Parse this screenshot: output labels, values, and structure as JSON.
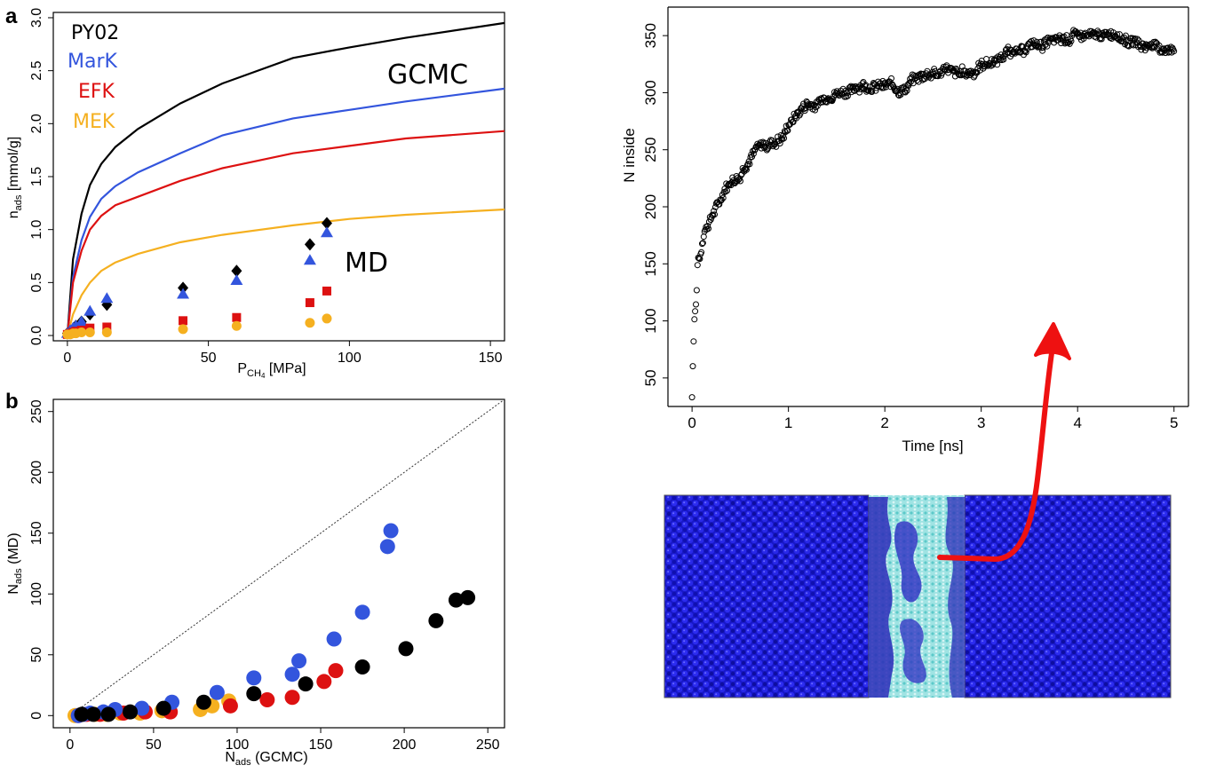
{
  "panels": {
    "a": {
      "label": "a",
      "legend": [
        {
          "name": "PY02",
          "color": "#000000"
        },
        {
          "name": "MarK",
          "color": "#3355dd"
        },
        {
          "name": "EFK",
          "color": "#dd1111"
        },
        {
          "name": "MEK",
          "color": "#f5b020"
        }
      ],
      "annotation_gcmc": "GCMC",
      "annotation_md": "MD",
      "ylabel_main": "n",
      "ylabel_sub": "ads",
      "ylabel_unit": " [mmol/g]",
      "xlabel_main": "P",
      "xlabel_sub": "CH",
      "xlabel_subsub": "4",
      "xlabel_unit": " [MPa]"
    },
    "b": {
      "label": "b",
      "ylabel_main": "N",
      "ylabel_sub": "ads",
      "ylabel_unit": " (MD)",
      "xlabel_main": "N",
      "xlabel_sub": "ads",
      "xlabel_unit": " (GCMC)"
    },
    "c": {
      "xlabel": "Time [ns]",
      "ylabel": "N inside"
    }
  },
  "colors": {
    "PY02": "#000000",
    "MarK": "#3355dd",
    "EFK": "#dd1111",
    "MEK": "#f5b020",
    "arrow": "#ee1111",
    "water_blue": "#1a1ae0",
    "slit_cyan": "#8fdcdc"
  },
  "chart_data": [
    {
      "id": "a",
      "type": "line",
      "xlim": [
        -5,
        155
      ],
      "ylim": [
        -0.05,
        3.05
      ],
      "xticks": [
        0,
        50,
        100,
        150
      ],
      "yticks": [
        0.0,
        0.5,
        1.0,
        1.5,
        2.0,
        2.5,
        3.0
      ],
      "ytick_labels": [
        "0.0",
        "0.5",
        "1.0",
        "1.5",
        "2.0",
        "2.5",
        "3.0"
      ],
      "series": [
        {
          "name": "PY02",
          "kind": "line",
          "x": [
            0,
            2,
            5,
            8,
            12,
            17,
            25,
            40,
            55,
            80,
            100,
            120,
            155
          ],
          "y": [
            0,
            0.72,
            1.15,
            1.42,
            1.62,
            1.78,
            1.95,
            2.19,
            2.38,
            2.62,
            2.72,
            2.81,
            2.95
          ]
        },
        {
          "name": "MarK",
          "kind": "line",
          "x": [
            0,
            2,
            5,
            8,
            12,
            17,
            25,
            40,
            55,
            80,
            100,
            120,
            155
          ],
          "y": [
            0,
            0.55,
            0.9,
            1.12,
            1.29,
            1.41,
            1.54,
            1.72,
            1.89,
            2.05,
            2.13,
            2.21,
            2.33
          ]
        },
        {
          "name": "EFK",
          "kind": "line",
          "x": [
            0,
            2,
            5,
            8,
            12,
            17,
            25,
            40,
            55,
            80,
            100,
            120,
            155
          ],
          "y": [
            0,
            0.5,
            0.8,
            1.0,
            1.13,
            1.23,
            1.31,
            1.46,
            1.58,
            1.72,
            1.79,
            1.86,
            1.93
          ]
        },
        {
          "name": "MEK",
          "kind": "line",
          "x": [
            0,
            2,
            5,
            8,
            12,
            17,
            25,
            40,
            55,
            80,
            100,
            120,
            155
          ],
          "y": [
            0,
            0.2,
            0.38,
            0.5,
            0.61,
            0.69,
            0.77,
            0.88,
            0.95,
            1.04,
            1.1,
            1.14,
            1.19
          ]
        },
        {
          "name": "PY02",
          "kind": "marker",
          "marker": "diamond",
          "x": [
            0,
            1,
            2,
            3,
            5,
            8,
            14,
            41,
            60,
            86,
            92
          ],
          "y": [
            0.02,
            0.04,
            0.06,
            0.09,
            0.13,
            0.2,
            0.29,
            0.45,
            0.61,
            0.86,
            1.06
          ]
        },
        {
          "name": "MarK",
          "kind": "marker",
          "marker": "triangle",
          "x": [
            0,
            1,
            2,
            3,
            5,
            8,
            14,
            41,
            60,
            86,
            92
          ],
          "y": [
            0.02,
            0.05,
            0.07,
            0.09,
            0.13,
            0.23,
            0.35,
            0.39,
            0.52,
            0.71,
            0.97
          ]
        },
        {
          "name": "EFK",
          "kind": "marker",
          "marker": "square",
          "x": [
            0,
            1,
            2,
            3,
            5,
            8,
            14,
            41,
            60,
            86,
            92
          ],
          "y": [
            0.01,
            0.02,
            0.03,
            0.04,
            0.05,
            0.07,
            0.08,
            0.14,
            0.17,
            0.31,
            0.42
          ]
        },
        {
          "name": "MEK",
          "kind": "marker",
          "marker": "circle",
          "x": [
            0,
            1,
            2,
            3,
            5,
            8,
            14,
            41,
            60,
            86,
            92
          ],
          "y": [
            0.01,
            0.01,
            0.02,
            0.02,
            0.03,
            0.03,
            0.03,
            0.06,
            0.09,
            0.12,
            0.16
          ]
        }
      ]
    },
    {
      "id": "b",
      "type": "scatter",
      "xlim": [
        -10,
        260
      ],
      "ylim": [
        -10,
        260
      ],
      "xticks": [
        0,
        50,
        100,
        150,
        200,
        250
      ],
      "yticks": [
        0,
        50,
        100,
        150,
        200,
        250
      ],
      "diagonal": true,
      "series": [
        {
          "name": "MEK",
          "x": [
            3,
            8,
            15,
            22,
            30,
            42,
            55,
            78,
            85,
            95
          ],
          "y": [
            0,
            1,
            1,
            1,
            2,
            2,
            4,
            5,
            8,
            12
          ]
        },
        {
          "name": "EFK",
          "x": [
            5,
            10,
            18,
            32,
            45,
            60,
            96,
            118,
            133,
            152,
            159
          ],
          "y": [
            0,
            1,
            1,
            2,
            3,
            3,
            8,
            13,
            15,
            28,
            37
          ]
        },
        {
          "name": "MarK",
          "x": [
            5,
            8,
            12,
            20,
            27,
            43,
            61,
            88,
            110,
            133,
            137,
            158,
            175,
            190,
            192
          ],
          "y": [
            0,
            1,
            2,
            3,
            5,
            6,
            11,
            19,
            31,
            34,
            45,
            63,
            85,
            139,
            152
          ]
        },
        {
          "name": "PY02",
          "x": [
            7,
            14,
            23,
            36,
            56,
            80,
            110,
            141,
            175,
            201,
            219,
            231,
            238
          ],
          "y": [
            1,
            1,
            1,
            3,
            6,
            11,
            18,
            26,
            40,
            55,
            78,
            95,
            97
          ]
        }
      ]
    },
    {
      "id": "c",
      "type": "scatter",
      "xlim": [
        -0.25,
        5.15
      ],
      "ylim": [
        25,
        375
      ],
      "xticks": [
        0,
        1,
        2,
        3,
        4,
        5
      ],
      "yticks": [
        50,
        100,
        150,
        200,
        250,
        300,
        350
      ],
      "trend": {
        "x": [
          0,
          0.02,
          0.05,
          0.08,
          0.12,
          0.2,
          0.3,
          0.5,
          0.7,
          0.85,
          1.0,
          1.2,
          1.5,
          1.8,
          2.0,
          2.2,
          2.5,
          2.8,
          3.0,
          3.3,
          3.6,
          3.9,
          4.1,
          4.3,
          4.6,
          5.0
        ],
        "y": [
          40,
          90,
          135,
          160,
          175,
          192,
          207,
          232,
          250,
          256,
          272,
          290,
          300,
          306,
          308,
          305,
          320,
          318,
          323,
          333,
          342,
          351,
          354,
          350,
          346,
          340
        ]
      },
      "n_points": 620
    }
  ]
}
